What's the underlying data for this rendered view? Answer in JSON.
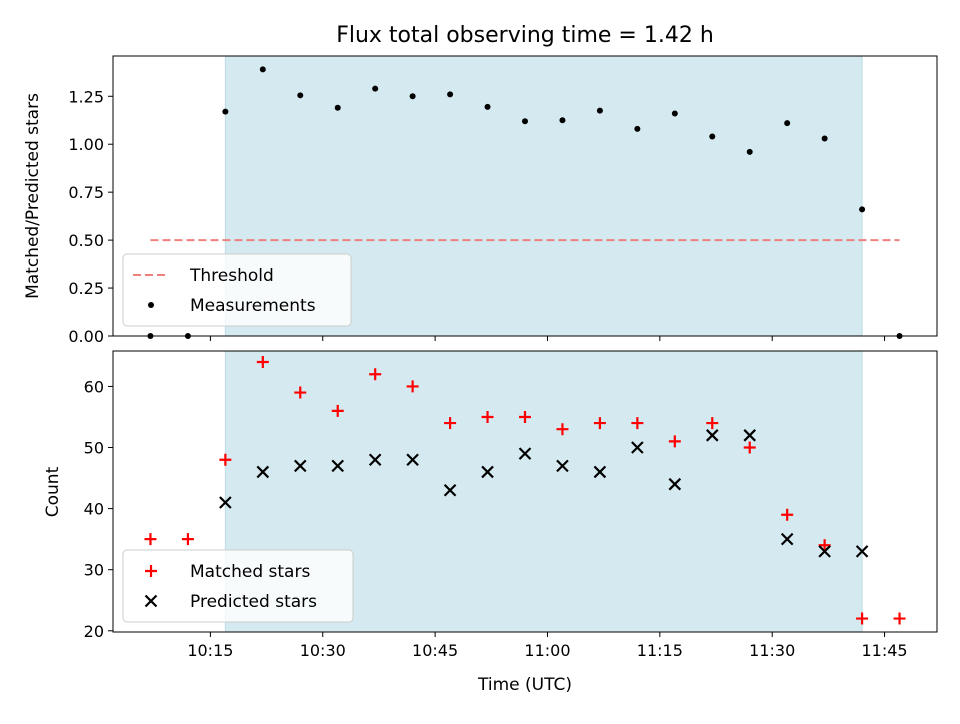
{
  "chart_data": [
    {
      "type": "scatter",
      "title": "Flux total observing time = 1.42 h",
      "xlabel": "",
      "ylabel": "Matched/Predicted stars",
      "xlim": [
        "10:02",
        "11:52"
      ],
      "ylim": [
        0,
        1.46
      ],
      "yticks": [
        "0.00",
        "0.25",
        "0.50",
        "0.75",
        "1.00",
        "1.25"
      ],
      "highlight_span": [
        "10:17",
        "11:42"
      ],
      "legend_position": "lower-left",
      "threshold": {
        "name": "Threshold",
        "y": 0.5,
        "x_from": "10:07",
        "x_to": "11:47",
        "color": "#f08080",
        "style": "dashed"
      },
      "series": [
        {
          "name": "Measurements",
          "marker": "dot",
          "color": "#000000",
          "x": [
            "10:07",
            "10:12",
            "10:17",
            "10:22",
            "10:27",
            "10:32",
            "10:37",
            "10:42",
            "10:47",
            "10:52",
            "10:57",
            "11:02",
            "11:07",
            "11:12",
            "11:17",
            "11:22",
            "11:27",
            "11:32",
            "11:37",
            "11:42",
            "11:47"
          ],
          "values": [
            0.0,
            0.0,
            1.17,
            1.39,
            1.255,
            1.19,
            1.29,
            1.25,
            1.26,
            1.195,
            1.12,
            1.125,
            1.175,
            1.08,
            1.16,
            1.04,
            0.96,
            1.11,
            1.03,
            0.66,
            0.0
          ]
        }
      ]
    },
    {
      "type": "scatter",
      "title": "",
      "xlabel": "Time (UTC)",
      "ylabel": "Count",
      "xlim": [
        "10:02",
        "11:52"
      ],
      "ylim": [
        19.8,
        65.8
      ],
      "xticks": [
        "10:15",
        "10:30",
        "10:45",
        "11:00",
        "11:15",
        "11:30",
        "11:45"
      ],
      "yticks": [
        "20",
        "30",
        "40",
        "50",
        "60"
      ],
      "highlight_span": [
        "10:17",
        "11:42"
      ],
      "legend_position": "lower-left",
      "series": [
        {
          "name": "Matched stars",
          "marker": "plus",
          "color": "#ff0000",
          "x": [
            "10:07",
            "10:12",
            "10:17",
            "10:22",
            "10:27",
            "10:32",
            "10:37",
            "10:42",
            "10:47",
            "10:52",
            "10:57",
            "11:02",
            "11:07",
            "11:12",
            "11:17",
            "11:22",
            "11:27",
            "11:32",
            "11:37",
            "11:42",
            "11:47"
          ],
          "values": [
            35,
            35,
            48,
            64,
            59,
            56,
            62,
            60,
            54,
            55,
            55,
            53,
            54,
            54,
            51,
            54,
            50,
            39,
            34,
            22,
            22
          ]
        },
        {
          "name": "Predicted stars",
          "marker": "x",
          "color": "#000000",
          "x": [
            "10:17",
            "10:22",
            "10:27",
            "10:32",
            "10:37",
            "10:42",
            "10:47",
            "10:52",
            "10:57",
            "11:02",
            "11:07",
            "11:12",
            "11:17",
            "11:22",
            "11:27",
            "11:32",
            "11:37",
            "11:42"
          ],
          "values": [
            41,
            46,
            47,
            47,
            48,
            48,
            43,
            46,
            49,
            47,
            46,
            50,
            44,
            52,
            52,
            35,
            33,
            33
          ]
        }
      ]
    }
  ],
  "colors": {
    "span": "#d4eaf0",
    "span_edge": "#bcdde6"
  }
}
